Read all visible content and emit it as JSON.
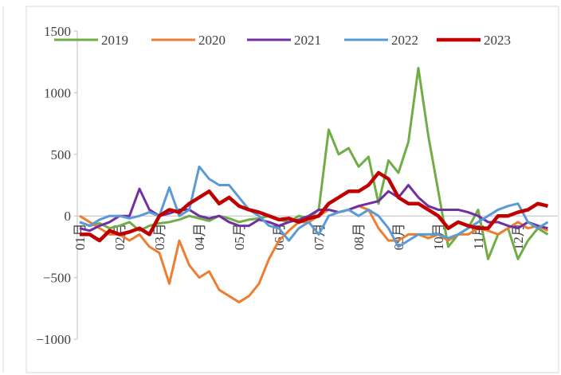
{
  "chart_data": {
    "type": "line",
    "categories": [
      "01月",
      null,
      null,
      null,
      "02月",
      null,
      null,
      null,
      "03月",
      null,
      null,
      null,
      "04月",
      null,
      null,
      null,
      "05月",
      null,
      null,
      null,
      "06月",
      null,
      null,
      null,
      "07月",
      null,
      null,
      null,
      "08月",
      null,
      null,
      null,
      "09月",
      null,
      null,
      null,
      "10月",
      null,
      null,
      null,
      "11月",
      null,
      null,
      null,
      "12月",
      null,
      null,
      null
    ],
    "series": [
      {
        "name": "2019",
        "color": "#70ad47",
        "values": [
          -50,
          -80,
          -60,
          -100,
          -80,
          -50,
          -120,
          -80,
          -60,
          -50,
          -30,
          0,
          -20,
          -40,
          0,
          -20,
          -50,
          -30,
          -20,
          0,
          -30,
          -50,
          0,
          -20,
          50,
          700,
          500,
          550,
          400,
          480,
          100,
          450,
          350,
          600,
          1200,
          650,
          200,
          -250,
          -150,
          -100,
          50,
          -350,
          -150,
          -100,
          -350,
          -200,
          -100,
          -150
        ]
      },
      {
        "name": "2020",
        "color": "#ed7d31",
        "values": [
          0,
          -50,
          -100,
          -150,
          -150,
          -200,
          -150,
          -250,
          -300,
          -550,
          -200,
          -400,
          -500,
          -450,
          -600,
          -650,
          -700,
          -650,
          -550,
          -350,
          -200,
          -120,
          -50,
          -50,
          0,
          50,
          30,
          50,
          80,
          50,
          -100,
          -200,
          -200,
          -150,
          -150,
          -180,
          -150,
          -200,
          -150,
          -150,
          -100,
          -120,
          -150,
          -100,
          -50,
          -100,
          -80,
          -120
        ]
      },
      {
        "name": "2021",
        "color": "#7030a0",
        "values": [
          -100,
          -120,
          -80,
          -50,
          0,
          0,
          220,
          50,
          0,
          20,
          50,
          50,
          0,
          -20,
          0,
          -50,
          -80,
          -80,
          -30,
          -50,
          -80,
          -50,
          -30,
          0,
          50,
          50,
          30,
          50,
          80,
          100,
          120,
          200,
          150,
          250,
          150,
          80,
          50,
          50,
          50,
          30,
          0,
          -50,
          -50,
          -80,
          -100,
          -50,
          -80,
          -100
        ]
      },
      {
        "name": "2022",
        "color": "#5b9bd5",
        "values": [
          -50,
          -80,
          -30,
          0,
          0,
          -20,
          0,
          30,
          0,
          230,
          0,
          50,
          400,
          300,
          250,
          250,
          150,
          50,
          0,
          -80,
          -100,
          -200,
          -100,
          -50,
          -150,
          0,
          30,
          50,
          0,
          50,
          0,
          -100,
          -250,
          -200,
          -150,
          -150,
          -150,
          -180,
          -150,
          -100,
          -50,
          0,
          50,
          80,
          100,
          -50,
          -100,
          -50
        ]
      },
      {
        "name": "2023",
        "color": "#c00000",
        "values": [
          -150,
          -150,
          -200,
          -120,
          -150,
          -130,
          -100,
          -150,
          0,
          50,
          30,
          100,
          150,
          200,
          100,
          150,
          80,
          50,
          30,
          0,
          -30,
          -20,
          -50,
          -20,
          0,
          100,
          150,
          200,
          200,
          250,
          350,
          300,
          150,
          100,
          100,
          50,
          0,
          -100,
          -50,
          -80,
          -100,
          -100,
          0,
          0,
          30,
          50,
          100,
          80
        ]
      }
    ],
    "ylim": [
      -1000,
      1500
    ],
    "yticks": [
      {
        "value": -1000,
        "label": "−1000"
      },
      {
        "value": -500,
        "label": "−500"
      },
      0,
      500,
      1000,
      1500
    ]
  }
}
